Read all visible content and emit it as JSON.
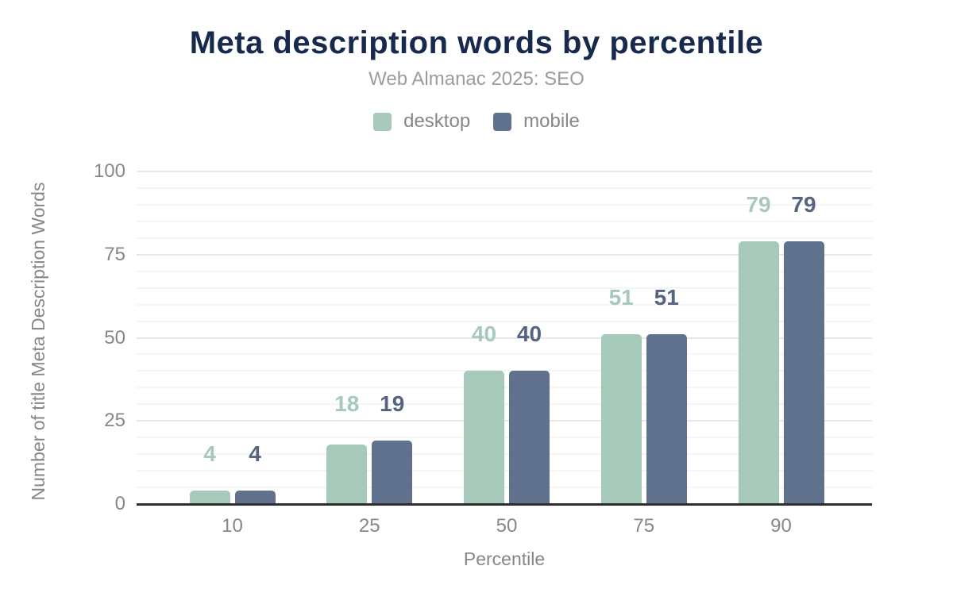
{
  "header": {
    "title": "Meta description words by percentile",
    "subtitle": "Web Almanac 2025: SEO"
  },
  "legend": {
    "items": [
      {
        "label": "desktop",
        "color": "#a6c9ba"
      },
      {
        "label": "mobile",
        "color": "#5f718d"
      }
    ]
  },
  "chart_data": {
    "type": "bar",
    "title": "Meta description words by percentile",
    "subtitle": "Web Almanac 2025: SEO",
    "categories": [
      "10",
      "25",
      "50",
      "75",
      "90"
    ],
    "series": [
      {
        "name": "desktop",
        "color": "#a6c9ba",
        "label_color": "#a6c9ba",
        "values": [
          4,
          18,
          40,
          51,
          79
        ]
      },
      {
        "name": "mobile",
        "color": "#5f718d",
        "label_color": "#546481",
        "values": [
          4,
          19,
          40,
          51,
          79
        ]
      }
    ],
    "xlabel": "Percentile",
    "ylabel": "Number of title Meta Description Words",
    "ylim": [
      0,
      100
    ],
    "yticks": [
      0,
      25,
      50,
      75,
      100
    ],
    "minor_grid_step": 5,
    "grid": true,
    "legend_position": "top",
    "data_labels": true,
    "colors": {
      "title": "#17294d",
      "subtitle": "#9a9ca0",
      "tick_text": "#85878a",
      "axis_line": "#2d2d2d",
      "grid_major": "#e7e7e7",
      "grid_minor": "#f5f5f5",
      "background": "#ffffff"
    }
  }
}
